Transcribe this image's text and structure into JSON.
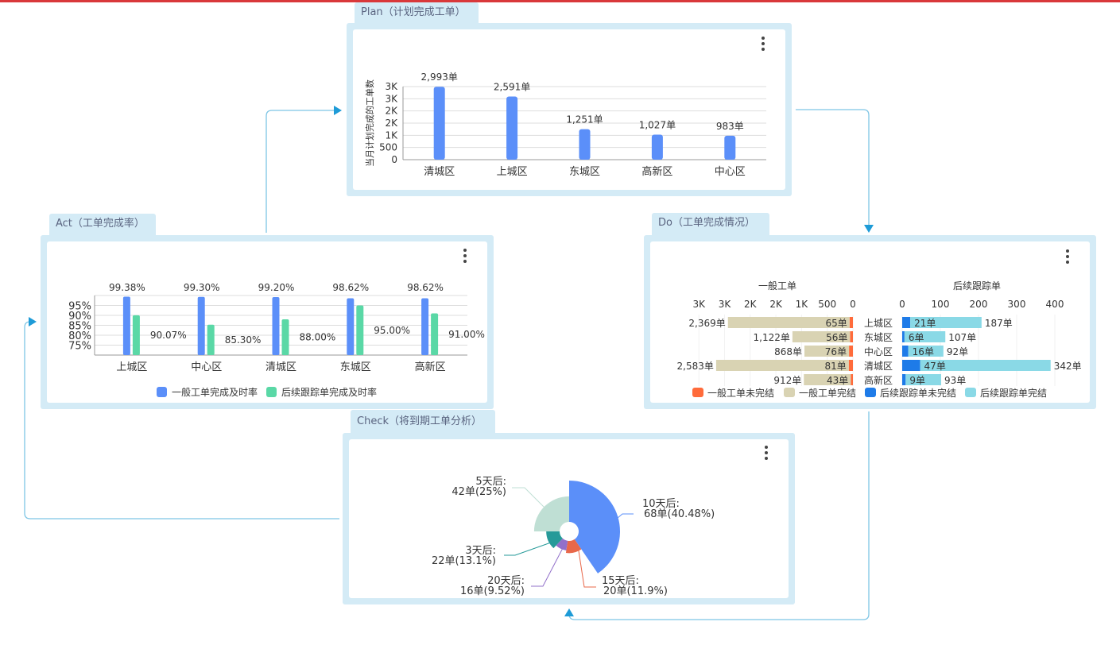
{
  "colors": {
    "accent_bar": "#d9383a",
    "frame": "#d4ebf6",
    "connector": "#7ec5e5",
    "arrow": "#1e9bd7"
  },
  "menu_icon": "more-vertical-icon",
  "plan": {
    "tab_label": "Plan（计划完成工单）",
    "chart_data": {
      "type": "bar",
      "ylabel": "当月计划完成的工单数",
      "categories": [
        "清城区",
        "上城区",
        "东城区",
        "高新区",
        "中心区"
      ],
      "values": [
        2993,
        2591,
        1251,
        1027,
        983
      ],
      "data_labels": [
        "2,993单",
        "2,591单",
        "1,251单",
        "1,027单",
        "983单"
      ],
      "ylim": [
        0,
        3000
      ],
      "yticks": [
        "0",
        "500",
        "1K",
        "2K",
        "2K",
        "3K",
        "3K"
      ],
      "grid": true,
      "color": "#5b8ff9"
    }
  },
  "act": {
    "tab_label": "Act（工单完成率）",
    "chart_data": {
      "type": "bar",
      "categories": [
        "上城区",
        "中心区",
        "清城区",
        "东城区",
        "高新区"
      ],
      "ylim": [
        70,
        100
      ],
      "yticks": [
        "75%",
        "80%",
        "85%",
        "90%",
        "95%"
      ],
      "grid": true,
      "legend": "bottom",
      "series": [
        {
          "name": "一般工单完成及时率",
          "values": [
            99.38,
            99.3,
            99.2,
            98.62,
            98.62
          ],
          "labels": [
            "99.38%",
            "99.30%",
            "99.20%",
            "98.62%",
            "98.62%"
          ],
          "color": "#5b8ff9"
        },
        {
          "name": "后续跟踪单完成及时率",
          "values": [
            90.07,
            85.3,
            88.0,
            95.0,
            91.0
          ],
          "labels": [
            "90.07%",
            "85.30%",
            "88.00%",
            "95.00%",
            "91.00%"
          ],
          "color": "#5ad8a6"
        }
      ]
    }
  },
  "do": {
    "tab_label": "Do（工单完成情况）",
    "chart_data": {
      "type": "bar",
      "orientation": "horizontal-stacked",
      "categories": [
        "上城区",
        "东城区",
        "中心区",
        "清城区",
        "高新区"
      ],
      "legend": "bottom",
      "left": {
        "title": "一般工单",
        "xlim": [
          0,
          3000
        ],
        "xticks": [
          "3K",
          "3K",
          "2K",
          "2K",
          "1K",
          "500",
          "0"
        ],
        "series": [
          {
            "name": "一般工单未完结",
            "values": [
              65,
              56,
              76,
              81,
              43
            ],
            "labels": [
              "65单",
              "56单",
              "76单",
              "81单",
              "43单"
            ],
            "color": "#ff6b3b"
          },
          {
            "name": "一般工单完结",
            "values": [
              2369,
              1122,
              868,
              2583,
              912
            ],
            "labels": [
              "2,369单",
              "1,122单",
              "868单",
              "2,583单",
              "912单"
            ],
            "color": "#d9d3b3"
          }
        ]
      },
      "right": {
        "title": "后续跟踪单",
        "xlim": [
          0,
          400
        ],
        "xticks": [
          "0",
          "100",
          "200",
          "300",
          "400"
        ],
        "series": [
          {
            "name": "后续跟踪单未完结",
            "values": [
              21,
              6,
              16,
              47,
              9
            ],
            "labels": [
              "21单",
              "6单",
              "16单",
              "47单",
              "9单"
            ],
            "color": "#1e7be8"
          },
          {
            "name": "后续跟踪单完结",
            "values": [
              187,
              107,
              92,
              342,
              93
            ],
            "labels": [
              "187单",
              "107单",
              "92单",
              "342单",
              "93单"
            ],
            "color": "#8ad9e6"
          }
        ]
      }
    }
  },
  "check": {
    "tab_label": "Check（将到期工单分析）",
    "chart_data": {
      "type": "pie",
      "variant": "rose",
      "slices": [
        {
          "name": "10天后",
          "value": 68,
          "label1": "10天后:",
          "label2": "68单(40.48%)",
          "color": "#5b8ff9"
        },
        {
          "name": "15天后",
          "value": 20,
          "label1": "15天后:",
          "label2": "20单(11.9%)",
          "color": "#e8684a"
        },
        {
          "name": "20天后",
          "value": 16,
          "label1": "20天后:",
          "label2": "16单(9.52%)",
          "color": "#9270ca"
        },
        {
          "name": "3天后",
          "value": 22,
          "label1": "3天后:",
          "label2": "22单(13.1%)",
          "color": "#269a99"
        },
        {
          "name": "5天后",
          "value": 42,
          "label1": "5天后:",
          "label2": "42单(25%)",
          "color": "#bfdfd4"
        }
      ]
    }
  }
}
